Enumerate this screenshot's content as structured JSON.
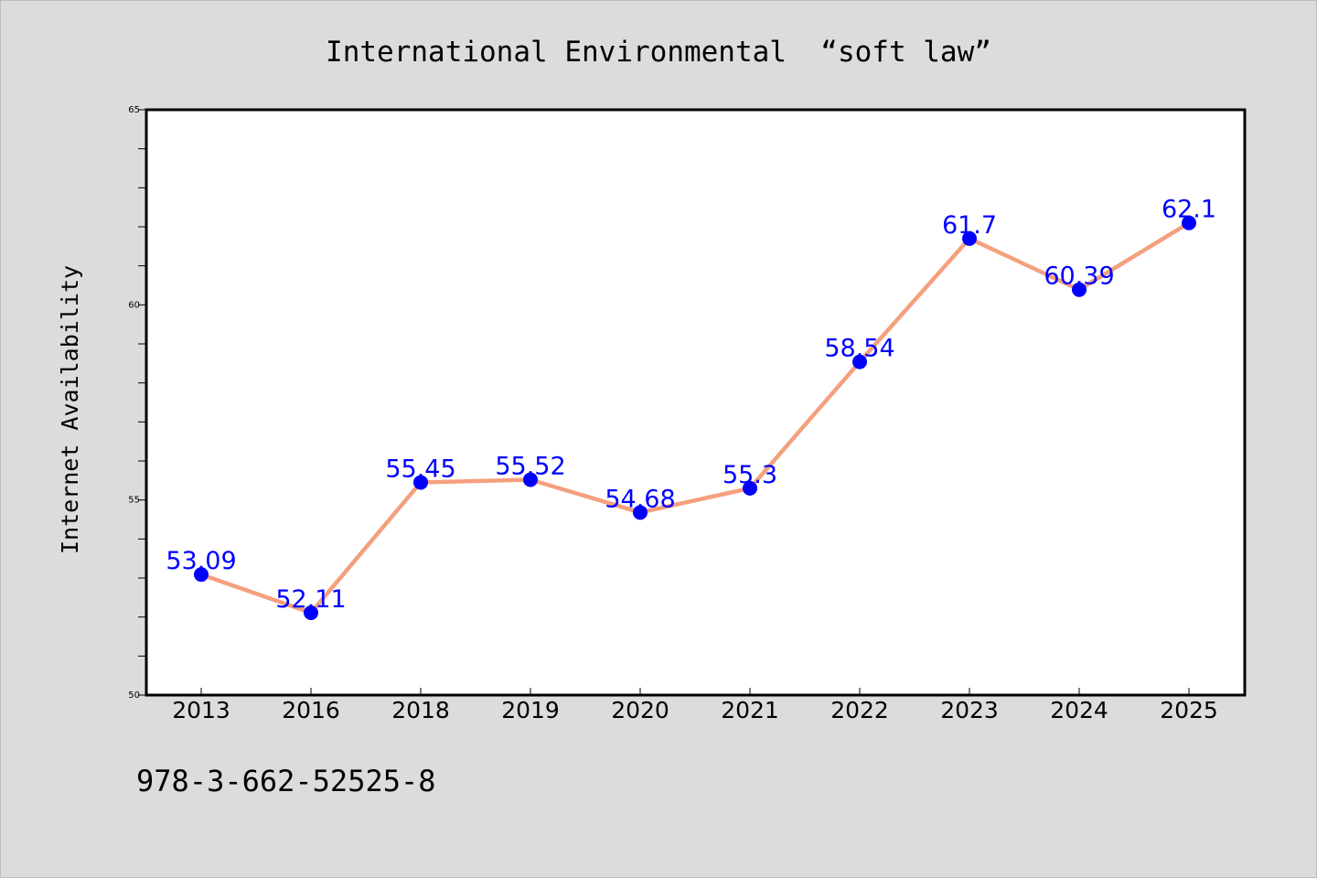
{
  "chart_data": {
    "type": "line",
    "title": "International Environmental  “soft law”",
    "xlabel": "",
    "ylabel": "Internet Availability",
    "categories": [
      "2013",
      "2016",
      "2018",
      "2019",
      "2020",
      "2021",
      "2022",
      "2023",
      "2024",
      "2025"
    ],
    "series": [
      {
        "values": [
          53.09,
          52.11,
          55.45,
          55.52,
          54.68,
          55.3,
          58.54,
          61.7,
          60.39,
          62.1
        ],
        "data_labels": [
          "53.09",
          "52.11",
          "55.45",
          "55.52",
          "54.68",
          "55.3",
          "58.54",
          "61.7",
          "60.39",
          "62.1"
        ]
      }
    ],
    "ylim": [
      50,
      65
    ],
    "yticks": [
      50,
      55,
      60,
      65
    ],
    "ytick_labels": [
      "50",
      "55",
      "60",
      "65"
    ],
    "grid": false,
    "legend": "none",
    "colors": {
      "line": "#f4a07e",
      "marker": "#0000ff",
      "data_label": "#0000ff",
      "plot_background": "#ffffff",
      "figure_background": "#dcdcdc"
    }
  },
  "footnote": "978-3-662-52525-8"
}
